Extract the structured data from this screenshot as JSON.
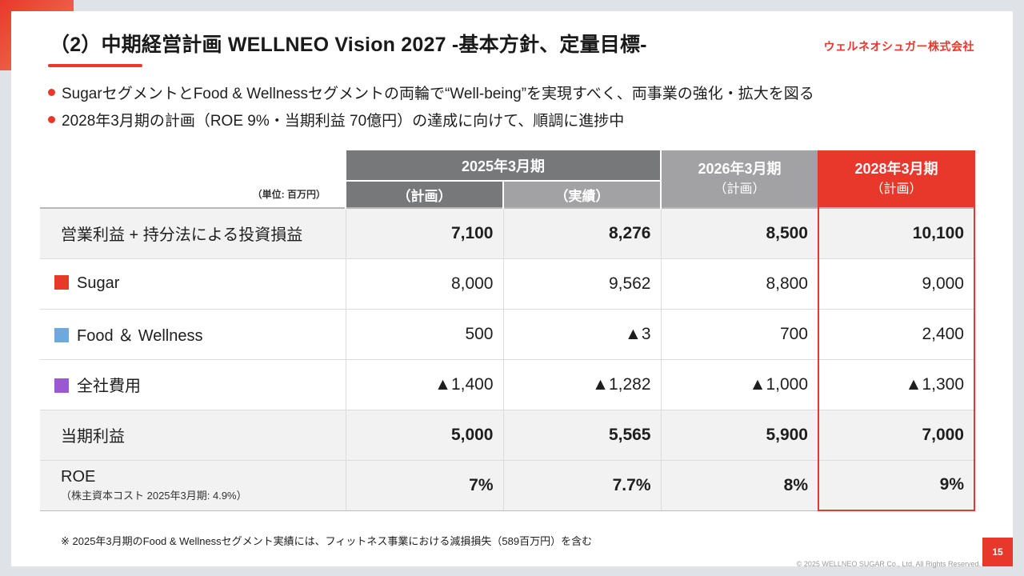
{
  "slide": {
    "title": "（2）中期経営計画 WELLNEO Vision 2027 -基本方針、定量目標-",
    "brand": "ウェルネオシュガー株式会社",
    "bullets": [
      "SugarセグメントとFood & Wellnessセグメントの両輪で“Well-being”を実現すべく、両事業の強化・拡大を図る",
      "2028年3月期の計画（ROE 9%・当期利益 70億円）の達成に向けて、順調に進捗中"
    ],
    "footnote": "※ 2025年3月期のFood & Wellnessセグメント実績には、フィットネス事業における減損損失（589百万円）を含む",
    "copyright": "© 2025 WELLNEO SUGAR Co., Ltd. All Rights Reserved.",
    "page_number": "15"
  },
  "table": {
    "unit": "（単位: 百万円）",
    "header": {
      "fy2025": "2025年3月期",
      "fy2025_plan": "（計画）",
      "fy2025_actual": "（実績）",
      "fy2026": "2026年3月期",
      "fy2026_sub": "（計画）",
      "fy2028": "2028年3月期",
      "fy2028_sub": "（計画）"
    },
    "rows": [
      {
        "label": "営業利益 + 持分法による投資損益",
        "values": [
          "7,100",
          "8,276",
          "8,500",
          "10,100"
        ]
      },
      {
        "label": "Sugar",
        "color": "#e8382c",
        "values": [
          "8,000",
          "9,562",
          "8,800",
          "9,000"
        ]
      },
      {
        "label": "Food ＆ Wellness",
        "color": "#6fa8dc",
        "values": [
          "500",
          "▲3",
          "700",
          "2,400"
        ]
      },
      {
        "label": "全社費用",
        "color": "#9b59d0",
        "values": [
          "▲1,400",
          "▲1,282",
          "▲1,000",
          "▲1,300"
        ]
      },
      {
        "label": "当期利益",
        "values": [
          "5,000",
          "5,565",
          "5,900",
          "7,000"
        ]
      },
      {
        "label": "ROE",
        "sublabel": "（株主資本コスト 2025年3月期: 4.9%）",
        "values": [
          "7%",
          "7.7%",
          "8%",
          "9%"
        ]
      }
    ]
  }
}
